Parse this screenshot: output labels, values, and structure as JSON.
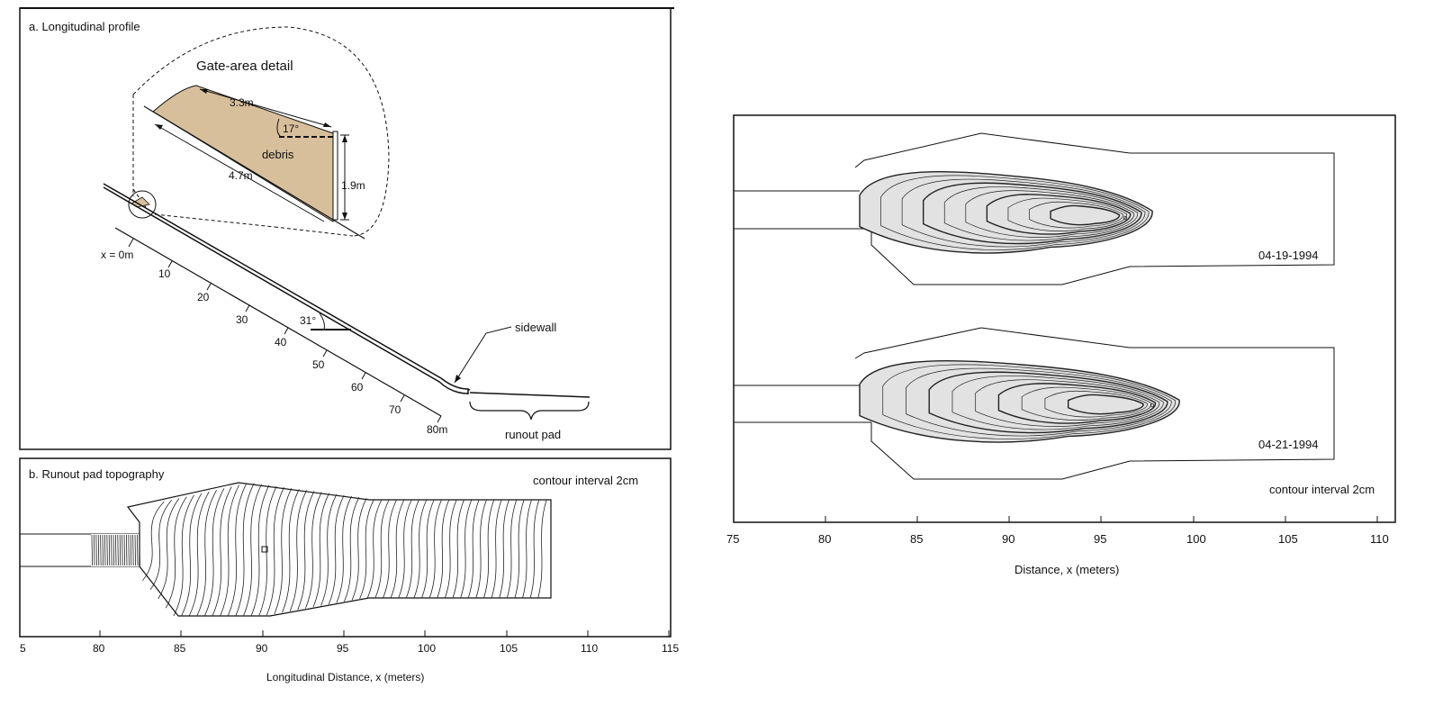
{
  "panel_a": {
    "label": "a.  Longitudinal profile",
    "detail_title": "Gate-area detail",
    "dim_top": "3.3m",
    "dim_bottom": "4.7m",
    "dim_height": "1.9m",
    "angle_gate": "17°",
    "debris": "debris",
    "x0": "x = 0m",
    "ticks": [
      "10",
      "20",
      "30",
      "40",
      "50",
      "60",
      "70",
      "80m"
    ],
    "slope_angle": "31°",
    "sidewall": "sidewall",
    "runout_pad": "runout pad",
    "debris_color": "#d8bf9c"
  },
  "panel_b": {
    "label": "b.  Runout pad topography",
    "contour_note": "contour interval 2cm",
    "axis_ticks": [
      "5",
      "80",
      "85",
      "90",
      "95",
      "100",
      "105",
      "110",
      "115"
    ],
    "axis_label": "Longitudinal Distance, x (meters)"
  },
  "panel_c": {
    "date_1": "04-19-1994",
    "date_2": "04-21-1994",
    "contour_note": "contour interval 2cm",
    "axis_ticks": [
      "75",
      "80",
      "85",
      "90",
      "95",
      "100",
      "105",
      "110"
    ],
    "axis_label": "Distance, x (meters)",
    "deposit_color": "#e2e2e2"
  }
}
